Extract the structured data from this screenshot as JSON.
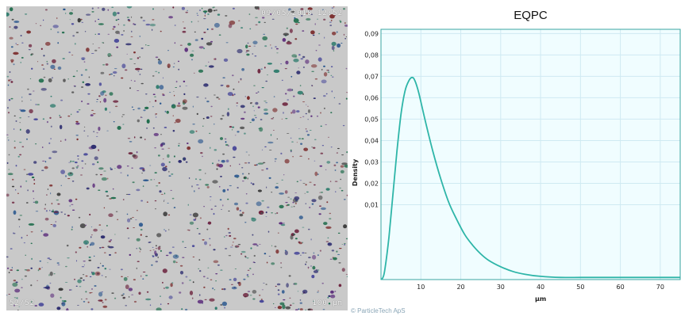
{
  "micrograph": {
    "timestamp_label": "09/05/2018 12:52",
    "scale_label": "100 µm",
    "corner_label": "52/52"
  },
  "chart_data": {
    "type": "area",
    "title": "EQPC",
    "xlabel": "µm",
    "ylabel": "Density",
    "xlim": [
      0,
      75
    ],
    "ylim": [
      -0.025,
      0.092
    ],
    "x_ticks": [
      10,
      20,
      30,
      40,
      50,
      60,
      70
    ],
    "y_ticks": [
      0.01,
      0.02,
      0.03,
      0.04,
      0.05,
      0.06,
      0.07,
      0.08,
      0.09
    ],
    "y_tick_labels": [
      "0,01",
      "0,02",
      "0,03",
      "0,04",
      "0,05",
      "0,06",
      "0,07",
      "0,08",
      "0,09"
    ],
    "grid": true,
    "colors": {
      "line": "#2eb5a8",
      "fill": "#f0fdff",
      "grid": "#cfeaf2",
      "border": "#3aa5a0"
    },
    "series": [
      {
        "x": [
          0,
          0.5,
          1,
          2,
          3,
          4,
          5,
          6,
          7,
          7.8,
          8.5,
          9.5,
          11,
          13,
          15,
          17,
          19,
          21,
          23,
          25,
          27,
          30,
          33,
          36,
          40,
          45,
          50,
          55,
          60,
          65,
          70,
          75
        ],
        "y": [
          -0.025,
          -0.024,
          -0.02,
          -0.005,
          0.015,
          0.035,
          0.052,
          0.063,
          0.068,
          0.0695,
          0.068,
          0.062,
          0.05,
          0.035,
          0.022,
          0.011,
          0.003,
          -0.004,
          -0.009,
          -0.013,
          -0.016,
          -0.019,
          -0.0212,
          -0.0225,
          -0.0235,
          -0.024,
          -0.024,
          -0.024,
          -0.024,
          -0.024,
          -0.024,
          -0.024
        ]
      }
    ]
  },
  "footer": {
    "copyright": "© ParticleTech ApS"
  }
}
